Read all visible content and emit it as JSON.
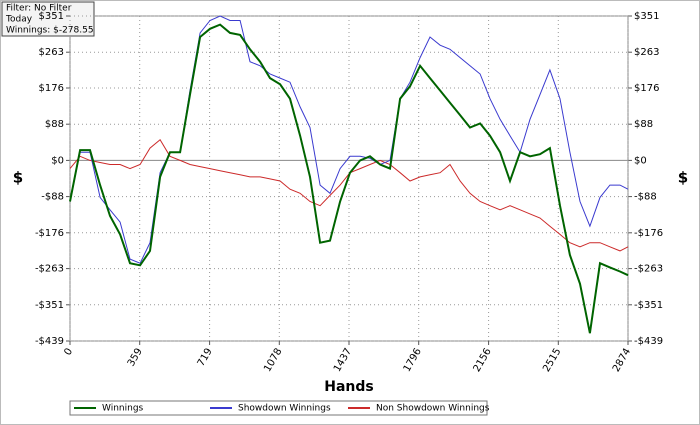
{
  "chart_data": {
    "type": "line",
    "info": [
      "Filter: No Filter",
      "Today",
      "Winnings: $-278.55"
    ],
    "x_label": "Hands",
    "y_label": "$",
    "x": [
      0,
      52,
      103,
      155,
      206,
      258,
      309,
      361,
      412,
      464,
      515,
      567,
      618,
      670,
      721,
      773,
      824,
      876,
      927,
      979,
      1030,
      1082,
      1133,
      1185,
      1236,
      1288,
      1339,
      1391,
      1442,
      1494,
      1545,
      1597,
      1648,
      1700,
      1751,
      1803,
      1854,
      1906,
      1957,
      2009,
      2060,
      2112,
      2163,
      2215,
      2266,
      2318,
      2369,
      2421,
      2472,
      2524,
      2575,
      2627,
      2678,
      2730,
      2781,
      2833,
      2874
    ],
    "series": [
      {
        "name": "Winnings",
        "color": "#006400",
        "width": 2,
        "values": [
          -100,
          25,
          25,
          -60,
          -135,
          -180,
          -250,
          -255,
          -220,
          -40,
          20,
          20,
          160,
          300,
          320,
          330,
          310,
          305,
          270,
          240,
          200,
          185,
          150,
          60,
          -40,
          -200,
          -195,
          -100,
          -30,
          0,
          10,
          -10,
          -20,
          150,
          180,
          230,
          200,
          170,
          140,
          110,
          80,
          90,
          60,
          20,
          -50,
          20,
          10,
          15,
          30,
          -110,
          -230,
          -300,
          -420,
          -250,
          -260,
          -270,
          -279
        ]
      },
      {
        "name": "Showdown Winnings",
        "color": "#3a3acf",
        "width": 1,
        "values": [
          -100,
          20,
          20,
          -90,
          -120,
          -150,
          -240,
          -250,
          -200,
          -30,
          20,
          20,
          170,
          310,
          340,
          351,
          340,
          340,
          240,
          230,
          210,
          200,
          190,
          130,
          80,
          -60,
          -80,
          -20,
          10,
          10,
          5,
          -10,
          0,
          150,
          190,
          250,
          300,
          280,
          270,
          250,
          230,
          210,
          150,
          100,
          60,
          20,
          100,
          160,
          220,
          150,
          20,
          -100,
          -160,
          -90,
          -60,
          -60,
          -70
        ]
      },
      {
        "name": "Non Showdown Winnings",
        "color": "#cc2a2a",
        "width": 1,
        "values": [
          -20,
          10,
          0,
          -5,
          -10,
          -10,
          -20,
          -10,
          30,
          50,
          10,
          0,
          -10,
          -15,
          -20,
          -25,
          -30,
          -35,
          -40,
          -40,
          -45,
          -50,
          -70,
          -80,
          -100,
          -110,
          -85,
          -60,
          -30,
          -20,
          -10,
          0,
          -10,
          -30,
          -50,
          -40,
          -35,
          -30,
          -10,
          -50,
          -80,
          -100,
          -110,
          -120,
          -110,
          -120,
          -130,
          -140,
          -160,
          -180,
          -200,
          -210,
          -200,
          -200,
          -210,
          -220,
          -210
        ]
      }
    ],
    "xlim": [
      0,
      2874
    ],
    "xticks": [
      0,
      359,
      719,
      1078,
      1437,
      1796,
      2156,
      2515,
      2874
    ],
    "ylim": [
      -439,
      351
    ],
    "yticks": [
      {
        "value": -439,
        "label": "-$439"
      },
      {
        "value": -351,
        "label": "-$351"
      },
      {
        "value": -263,
        "label": "-$263"
      },
      {
        "value": -176,
        "label": "-$176"
      },
      {
        "value": -88,
        "label": "-$88"
      },
      {
        "value": 0,
        "label": "$0"
      },
      {
        "value": 88,
        "label": "$88"
      },
      {
        "value": 176,
        "label": "$176"
      },
      {
        "value": 263,
        "label": "$263"
      },
      {
        "value": 351,
        "label": "$351"
      }
    ],
    "grid": true
  }
}
